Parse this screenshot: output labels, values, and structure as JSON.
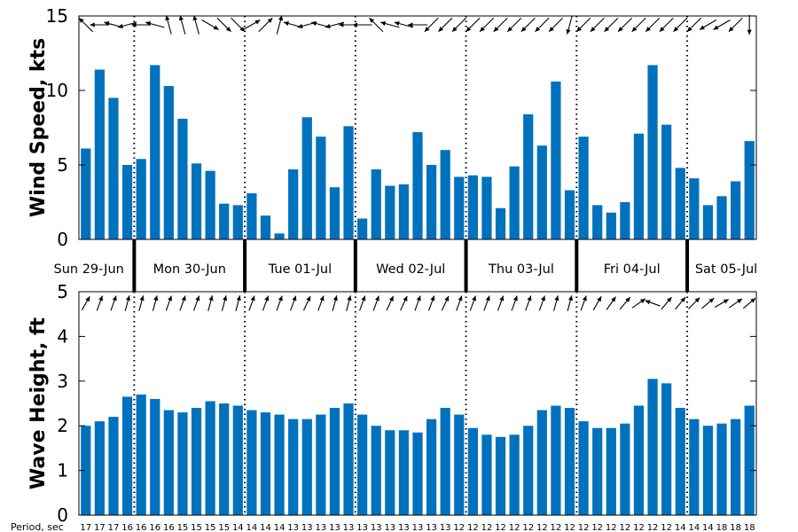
{
  "colors": {
    "bar": "#0072BD",
    "axis": "#000000",
    "background": "#ffffff"
  },
  "chart_data": [
    {
      "type": "bar",
      "ylabel": "Wind Speed, kts",
      "ylim": [
        0,
        15
      ],
      "yticks": [
        0,
        5,
        10,
        15
      ],
      "values": [
        6.1,
        11.4,
        9.5,
        5.0,
        5.4,
        11.7,
        10.3,
        8.1,
        5.1,
        4.6,
        2.4,
        2.3,
        3.1,
        1.6,
        0.4,
        4.7,
        8.2,
        6.9,
        3.5,
        7.6,
        1.4,
        4.7,
        3.6,
        3.7,
        7.2,
        5.0,
        6.0,
        4.2,
        4.3,
        4.2,
        2.1,
        4.9,
        8.4,
        6.3,
        10.6,
        3.3,
        6.9,
        2.3,
        1.8,
        2.5,
        7.1,
        11.7,
        7.7,
        4.8,
        4.1,
        2.3,
        2.9,
        3.9,
        6.6
      ],
      "direction_arrows_deg": [
        315,
        270,
        285,
        255,
        270,
        285,
        345,
        345,
        345,
        120,
        135,
        135,
        60,
        45,
        15,
        285,
        255,
        285,
        255,
        270,
        270,
        315,
        285,
        285,
        270,
        225,
        225,
        225,
        225,
        225,
        225,
        225,
        225,
        225,
        225,
        195,
        225,
        225,
        225,
        225,
        225,
        225,
        225,
        225,
        225,
        240,
        240,
        225,
        180
      ],
      "day_labels": [
        "Sun 29-Jun",
        "Mon 30-Jun",
        "Tue 01-Jul",
        "Wed 02-Jul",
        "Thu 03-Jul",
        "Fri 04-Jul",
        "Sat 05-Jul"
      ],
      "day_boundaries_after_bar": [
        3,
        11,
        19,
        27,
        35,
        43
      ]
    },
    {
      "type": "bar",
      "ylabel": "Wave Height, ft",
      "ylim": [
        0,
        5
      ],
      "yticks": [
        0,
        1,
        2,
        3,
        4,
        5
      ],
      "values": [
        2.0,
        2.1,
        2.2,
        2.65,
        2.7,
        2.6,
        2.35,
        2.3,
        2.4,
        2.55,
        2.5,
        2.45,
        2.35,
        2.3,
        2.25,
        2.15,
        2.15,
        2.25,
        2.4,
        2.5,
        2.25,
        2.0,
        1.9,
        1.9,
        1.85,
        2.15,
        2.4,
        2.25,
        1.95,
        1.8,
        1.75,
        1.8,
        2.0,
        2.35,
        2.45,
        2.4,
        2.1,
        1.95,
        1.95,
        2.05,
        2.45,
        3.05,
        2.95,
        2.4,
        2.15,
        2.0,
        2.05,
        2.15,
        2.45
      ],
      "direction_arrows_deg": [
        30,
        20,
        20,
        15,
        15,
        15,
        20,
        20,
        20,
        15,
        15,
        15,
        20,
        20,
        20,
        20,
        25,
        20,
        15,
        15,
        20,
        20,
        25,
        25,
        20,
        20,
        25,
        20,
        20,
        20,
        20,
        20,
        20,
        20,
        15,
        15,
        20,
        30,
        35,
        40,
        55,
        -70,
        40,
        40,
        45,
        50,
        60,
        55,
        50
      ],
      "period_label": "Period, sec",
      "periods": [
        "17",
        "17",
        "17",
        "16",
        "16",
        "16",
        "16",
        "15",
        "15",
        "15",
        "15",
        "14",
        "14",
        "14",
        "14",
        "13",
        "13",
        "13",
        "13",
        "13",
        "13",
        "13",
        "13",
        "13",
        "13",
        "13",
        "13",
        "12",
        "12",
        "12",
        "12",
        "12",
        "12",
        "12",
        "12",
        "12",
        "12",
        "12",
        "12",
        "12",
        "12",
        "12",
        "12",
        "14",
        "14",
        "14",
        "18",
        "18",
        "18"
      ],
      "day_boundaries_after_bar": [
        3,
        11,
        19,
        27,
        35,
        43
      ]
    }
  ]
}
